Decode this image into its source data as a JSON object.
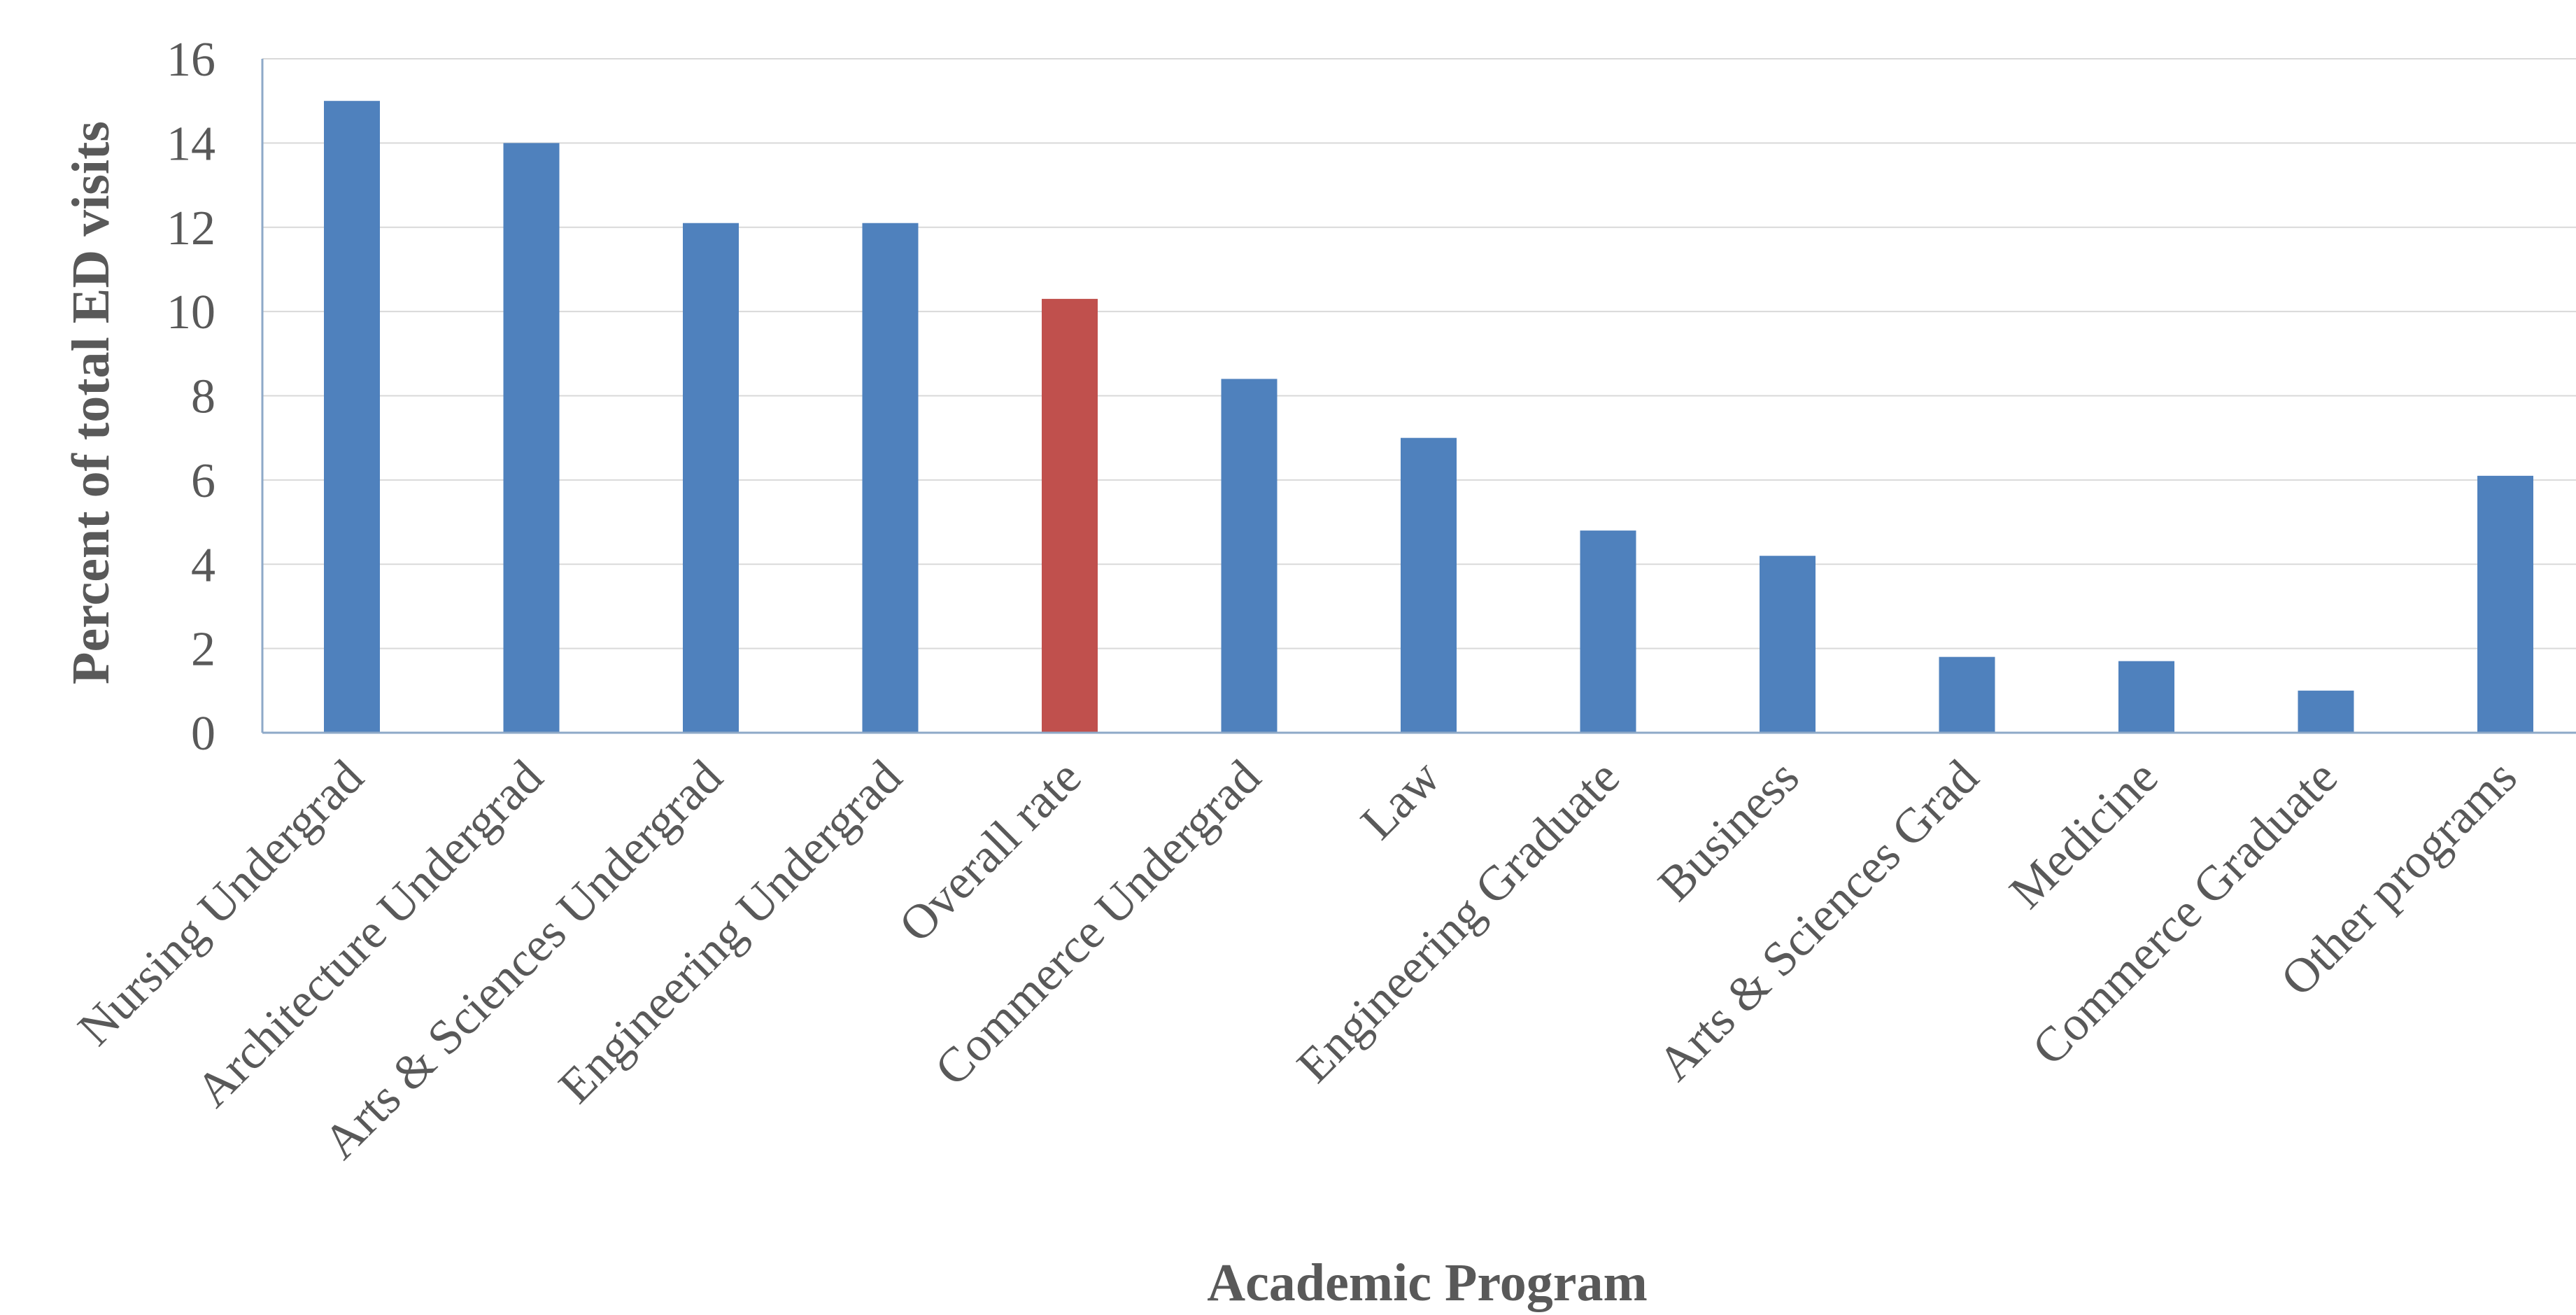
{
  "chart_data": {
    "type": "bar",
    "title": "",
    "xlabel": "Academic Program",
    "ylabel": "Percent of total ED visits",
    "ylim": [
      0,
      16
    ],
    "yticks": [
      0,
      2,
      4,
      6,
      8,
      10,
      12,
      14,
      16
    ],
    "grid": true,
    "legend": "none",
    "categories": [
      "Nursing Undergrad",
      "Architecture Undergrad",
      "Arts & Sciences Undergrad",
      "Engineering Undergrad",
      "Overall rate",
      "Commerce Undergrad",
      "Law",
      "Engineering Graduate",
      "Business",
      "Arts & Sciences Grad",
      "Medicine",
      "Commerce Graduate",
      "Other programs"
    ],
    "values": [
      15.0,
      14.0,
      12.1,
      12.1,
      10.3,
      8.4,
      7.0,
      4.8,
      4.2,
      1.8,
      1.7,
      1.0,
      6.1
    ],
    "highlight_category": "Overall rate",
    "colors": {
      "bar": "#4F81BD",
      "highlight": "#C0504D",
      "gridline": "#D9D9D9",
      "axis": "#8EA9C8",
      "text": "#595959"
    }
  }
}
